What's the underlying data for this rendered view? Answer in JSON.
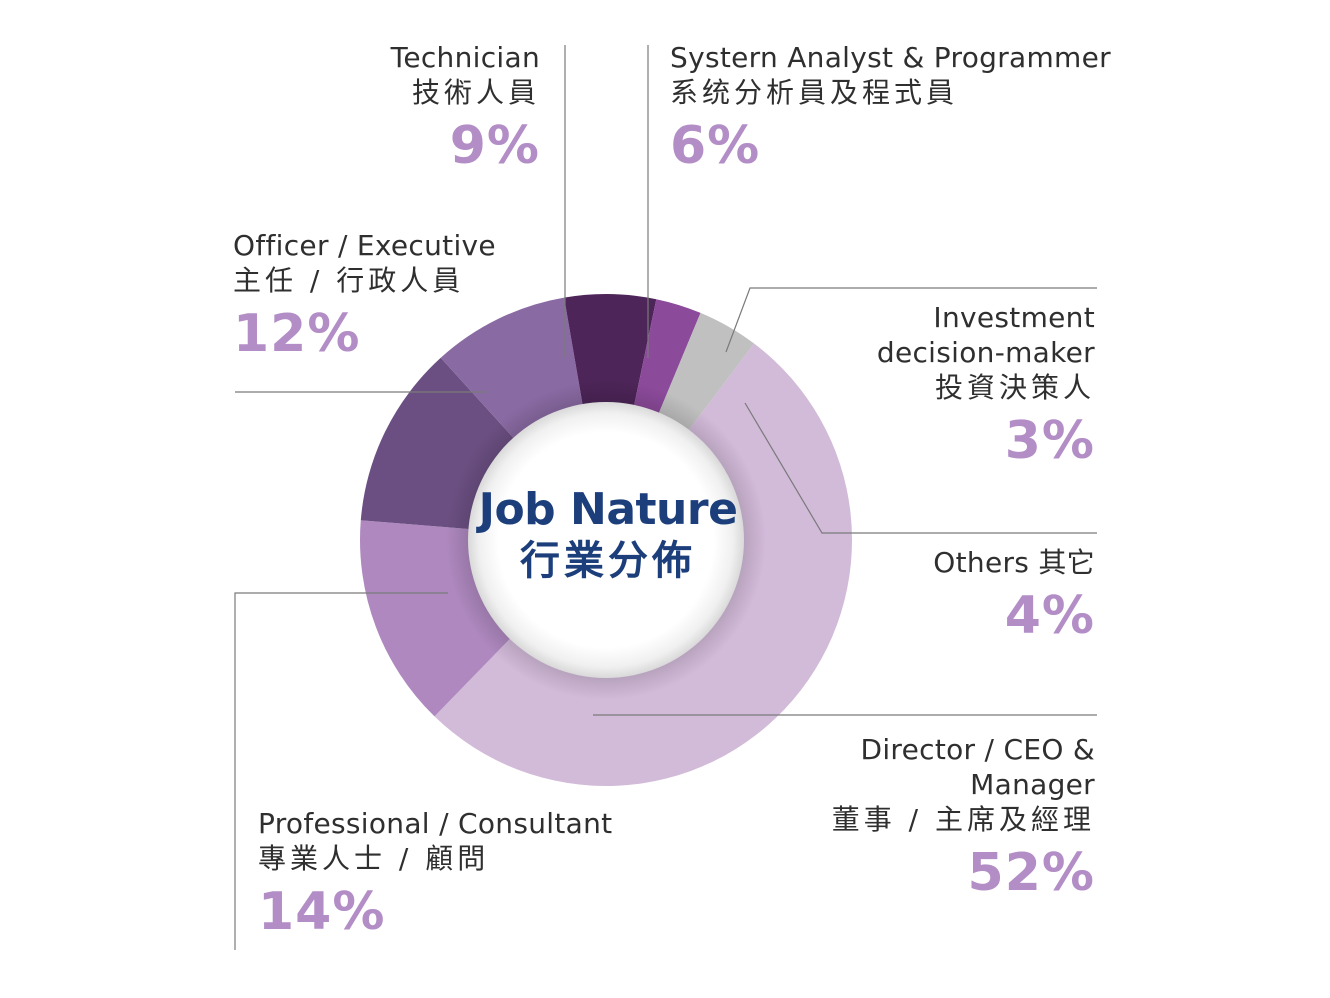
{
  "chart_data": {
    "type": "pie",
    "title": "Job Nature",
    "title_zh": "行業分佈",
    "slices": [
      {
        "label": "Director / CEO & Manager",
        "label_zh": "董事 / 主席及經理",
        "value": 52,
        "display": "52%",
        "color": "#d2bad9"
      },
      {
        "label": "Professional / Consultant",
        "label_zh": "專業人士 / 顧問",
        "value": 14,
        "display": "14%",
        "color": "#ae88bf"
      },
      {
        "label": "Officer / Executive",
        "label_zh": "主任 / 行政人員",
        "value": 12,
        "display": "12%",
        "color": "#6b4f82"
      },
      {
        "label": "Technician",
        "label_zh": "技術人員",
        "value": 9,
        "display": "9%",
        "color": "#8a6aa3"
      },
      {
        "label": "Systern Analyst & Programmer",
        "label_zh": "系统分析員及程式員",
        "value": 6,
        "display": "6%",
        "color": "#4d2558"
      },
      {
        "label": "Investment decision-maker",
        "label_line1": "Investment",
        "label_line2": "decision-maker",
        "label_zh": "投資決策人",
        "value": 3,
        "display": "3%",
        "color": "#8c4a9b"
      },
      {
        "label": "Others",
        "label_zh": "其它",
        "label_full": "Others 其它",
        "value": 4,
        "display": "4%",
        "color": "#c0c0c0"
      }
    ],
    "director_line1": "Director / CEO &",
    "director_line2": "Manager"
  }
}
